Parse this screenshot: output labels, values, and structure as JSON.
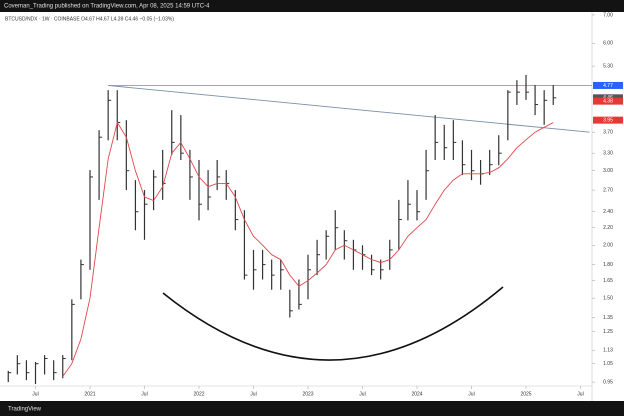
{
  "chart_data": {
    "type": "ohlc",
    "published": "Coveman_Trading published on TradingView.com, Apr 08, 2025 14:59 UTC-4",
    "header": "BTCUSD/NDX · 1W · COINBASE  O4.67  H4.67  L4.39  C4.46  −0.05 (−1.03%)",
    "brand": "TradingView",
    "log_scale": true,
    "color": "#333333",
    "x": [
      "2020-04",
      "2020-05",
      "2020-06",
      "2020-07",
      "2020-08",
      "2020-09",
      "2020-10",
      "2020-11",
      "2020-12",
      "2021-01",
      "2021-02",
      "2021-03",
      "2021-04",
      "2021-05",
      "2021-06",
      "2021-07",
      "2021-08",
      "2021-09",
      "2021-10",
      "2021-11",
      "2021-12",
      "2022-01",
      "2022-02",
      "2022-03",
      "2022-04",
      "2022-05",
      "2022-06",
      "2022-07",
      "2022-08",
      "2022-09",
      "2022-10",
      "2022-11",
      "2022-12",
      "2023-01",
      "2023-02",
      "2023-03",
      "2023-04",
      "2023-05",
      "2023-06",
      "2023-07",
      "2023-08",
      "2023-09",
      "2023-10",
      "2023-11",
      "2023-12",
      "2024-01",
      "2024-02",
      "2024-03",
      "2024-04",
      "2024-05",
      "2024-06",
      "2024-07",
      "2024-08",
      "2024-09",
      "2024-10",
      "2024-11",
      "2024-12",
      "2025-01",
      "2025-02",
      "2025-03",
      "2025-04"
    ],
    "high": [
      1.01,
      1.1,
      1.07,
      1.06,
      1.1,
      1.07,
      1.1,
      1.49,
      1.85,
      3.01,
      3.74,
      4.65,
      4.65,
      3.95,
      2.85,
      2.7,
      3.01,
      3.36,
      4.17,
      4.06,
      3.36,
      3.18,
      3.01,
      3.18,
      3.01,
      2.7,
      2.42,
      1.95,
      1.95,
      1.85,
      1.85,
      1.57,
      1.66,
      1.9,
      2.06,
      2.17,
      2.42,
      2.17,
      2.06,
      2.0,
      1.9,
      1.85,
      2.06,
      2.56,
      2.85,
      2.7,
      3.36,
      4.06,
      3.85,
      3.95,
      3.54,
      3.36,
      3.18,
      3.36,
      3.64,
      4.65,
      4.91,
      5.05,
      4.78,
      4.65,
      4.78
    ],
    "low": [
      0.95,
      0.99,
      0.96,
      0.94,
      0.99,
      0.96,
      0.97,
      1.07,
      1.49,
      1.75,
      2.56,
      3.54,
      3.54,
      2.7,
      2.17,
      2.06,
      2.42,
      2.56,
      3.27,
      3.18,
      2.56,
      2.29,
      2.42,
      2.7,
      2.56,
      2.17,
      1.66,
      1.57,
      1.66,
      1.57,
      1.57,
      1.35,
      1.41,
      1.49,
      1.7,
      1.85,
      1.95,
      1.85,
      1.75,
      1.75,
      1.7,
      1.66,
      1.75,
      1.95,
      2.29,
      2.29,
      2.56,
      3.18,
      3.18,
      3.18,
      2.93,
      2.85,
      2.78,
      2.93,
      3.09,
      3.54,
      4.29,
      4.41,
      4.06,
      3.85,
      4.29
    ],
    "close": [
      1.0,
      1.05,
      1.0,
      1.05,
      1.08,
      1.0,
      1.08,
      1.45,
      1.8,
      2.9,
      3.6,
      4.4,
      3.9,
      3.0,
      2.4,
      2.5,
      2.9,
      2.8,
      3.5,
      3.3,
      2.9,
      2.5,
      2.6,
      2.9,
      2.8,
      2.3,
      1.7,
      1.75,
      1.8,
      1.7,
      1.75,
      1.4,
      1.45,
      1.75,
      1.9,
      2.1,
      2.2,
      2.05,
      1.95,
      1.9,
      1.75,
      1.75,
      1.95,
      2.3,
      2.5,
      2.4,
      3.0,
      3.5,
      3.4,
      3.5,
      3.1,
      3.0,
      2.95,
      3.1,
      3.3,
      4.6,
      4.6,
      4.6,
      4.3,
      4.4,
      4.46
    ],
    "ma": {
      "color": "#e0474c",
      "values": [
        null,
        null,
        null,
        null,
        null,
        null,
        0.98,
        1.05,
        1.2,
        1.5,
        2.2,
        3.2,
        3.9,
        3.6,
        3.0,
        2.6,
        2.55,
        2.75,
        3.3,
        3.5,
        3.2,
        2.9,
        2.75,
        2.8,
        2.8,
        2.6,
        2.3,
        2.1,
        2.0,
        1.9,
        1.85,
        1.7,
        1.6,
        1.65,
        1.72,
        1.8,
        1.95,
        2.0,
        1.95,
        1.9,
        1.85,
        1.82,
        1.85,
        1.95,
        2.1,
        2.2,
        2.3,
        2.5,
        2.7,
        2.85,
        2.95,
        2.95,
        2.95,
        2.97,
        3.05,
        3.2,
        3.4,
        3.55,
        3.7,
        3.8,
        3.9
      ]
    },
    "hline": {
      "value": 4.77,
      "color": "#5b8def"
    },
    "trendline": {
      "x": [
        "2021-03",
        "2025-08"
      ],
      "values": [
        4.77,
        3.7
      ],
      "color": "#7a8ea8"
    },
    "price_labels": [
      {
        "value": 4.77,
        "color": "#2962ff"
      },
      {
        "value": 4.46,
        "color": "#555555"
      },
      {
        "value": 4.38,
        "color": "#e53935"
      },
      {
        "value": 3.95,
        "color": "#e53935"
      }
    ],
    "ylim": [
      0.91,
      7.27
    ],
    "yticks": [
      {
        "value": 7,
        "label": "7.00"
      },
      {
        "value": 6,
        "label": "6.00"
      },
      {
        "value": 5.3,
        "label": "5.30"
      },
      {
        "value": 3.7,
        "label": "3.70"
      },
      {
        "value": 3.3,
        "label": "3.30"
      },
      {
        "value": 3,
        "label": "3.00"
      },
      {
        "value": 2.7,
        "label": "2.70"
      },
      {
        "value": 2.4,
        "label": "2.40"
      },
      {
        "value": 2.2,
        "label": "2.20"
      },
      {
        "value": 2,
        "label": "2.00"
      },
      {
        "value": 1.8,
        "label": "1.80"
      },
      {
        "value": 1.65,
        "label": "1.65"
      },
      {
        "value": 1.5,
        "label": "1.50"
      },
      {
        "value": 1.35,
        "label": "1.35"
      },
      {
        "value": 1.25,
        "label": "1.25"
      },
      {
        "value": 1.13,
        "label": "1.13"
      },
      {
        "value": 1.05,
        "label": "1.05"
      },
      {
        "value": 0.95,
        "label": "0.95"
      }
    ],
    "xticks": [
      {
        "value": "2020-07",
        "label": "Jul"
      },
      {
        "value": "2021-01",
        "label": "2021"
      },
      {
        "value": "2021-07",
        "label": "Jul"
      },
      {
        "value": "2022-01",
        "label": "2022"
      },
      {
        "value": "2022-07",
        "label": "Jul"
      },
      {
        "value": "2023-01",
        "label": "2023"
      },
      {
        "value": "2023-07",
        "label": "Jul"
      },
      {
        "value": "2024-01",
        "label": "2024"
      },
      {
        "value": "2024-07",
        "label": "Jul"
      },
      {
        "value": "2025-01",
        "label": "2025"
      },
      {
        "value": "2025-07",
        "label": "Jul"
      }
    ]
  }
}
